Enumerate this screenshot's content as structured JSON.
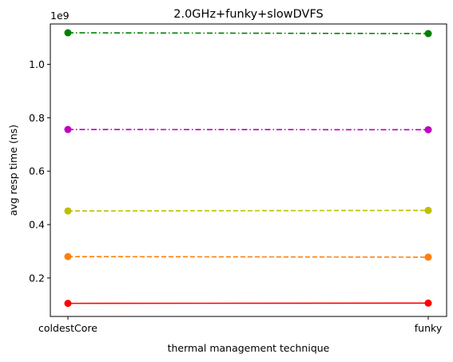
{
  "chart_data": {
    "type": "line",
    "title": "2.0GHz+funky+slowDVFS",
    "xlabel": "thermal management technique",
    "ylabel": "avg resp time (ns)",
    "categories": [
      "coldestCore",
      "funky"
    ],
    "y_offset_label": "1e9",
    "y_scale": 1000000000,
    "ylim": [
      56000000,
      1151000000
    ],
    "yticks": [
      200000000,
      400000000,
      600000000,
      800000000,
      1000000000
    ],
    "ytick_labels": [
      "0.2",
      "0.4",
      "0.6",
      "0.8",
      "1.0"
    ],
    "grid": false,
    "series": [
      {
        "color": "#ff0000",
        "style": "solid",
        "values": [
          105000000,
          106000000
        ]
      },
      {
        "color": "#ff7f0e",
        "style": "dashed",
        "values": [
          280000000,
          278000000
        ]
      },
      {
        "color": "#bfbf00",
        "style": "dashed",
        "values": [
          451000000,
          453000000
        ]
      },
      {
        "color": "#bf00bf",
        "style": "dashdot",
        "values": [
          756000000,
          755000000
        ]
      },
      {
        "color": "#008000",
        "style": "dashdot",
        "values": [
          1118000000,
          1115000000
        ]
      }
    ]
  }
}
